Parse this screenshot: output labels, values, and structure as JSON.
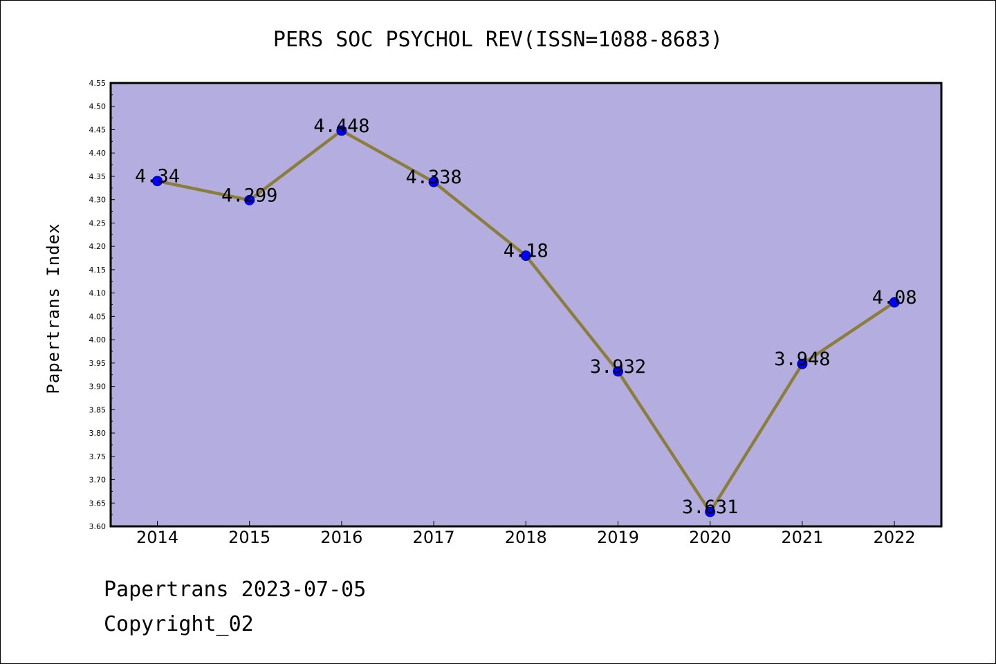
{
  "chart_data": {
    "type": "line",
    "title": "PERS SOC PSYCHOL REV(ISSN=1088-8683)",
    "xlabel": "",
    "ylabel": "Papertrans Index",
    "categories": [
      "2014",
      "2015",
      "2016",
      "2017",
      "2018",
      "2019",
      "2020",
      "2021",
      "2022"
    ],
    "values": [
      4.34,
      4.299,
      4.448,
      4.338,
      4.18,
      3.932,
      3.631,
      3.948,
      4.08
    ],
    "data_labels": [
      "4.34",
      "4.299",
      "4.448",
      "4.338",
      "4.18",
      "3.932",
      "3.631",
      "3.948",
      "4.08"
    ],
    "ylim": [
      3.6,
      4.55
    ],
    "yticks": [
      "3.60",
      "3.65",
      "3.70",
      "3.75",
      "3.80",
      "3.85",
      "3.90",
      "3.95",
      "4.00",
      "4.05",
      "4.10",
      "4.15",
      "4.20",
      "4.25",
      "4.30",
      "4.35",
      "4.40",
      "4.45",
      "4.50",
      "4.55"
    ],
    "grid": false,
    "colors": {
      "plot_background": "#b4aee0",
      "line": "#8b7d3a",
      "marker": "#0000ff",
      "marker_edge": "#00008b"
    }
  },
  "footer": {
    "line1": "Papertrans 2023-07-05",
    "line2": "Copyright_02"
  }
}
